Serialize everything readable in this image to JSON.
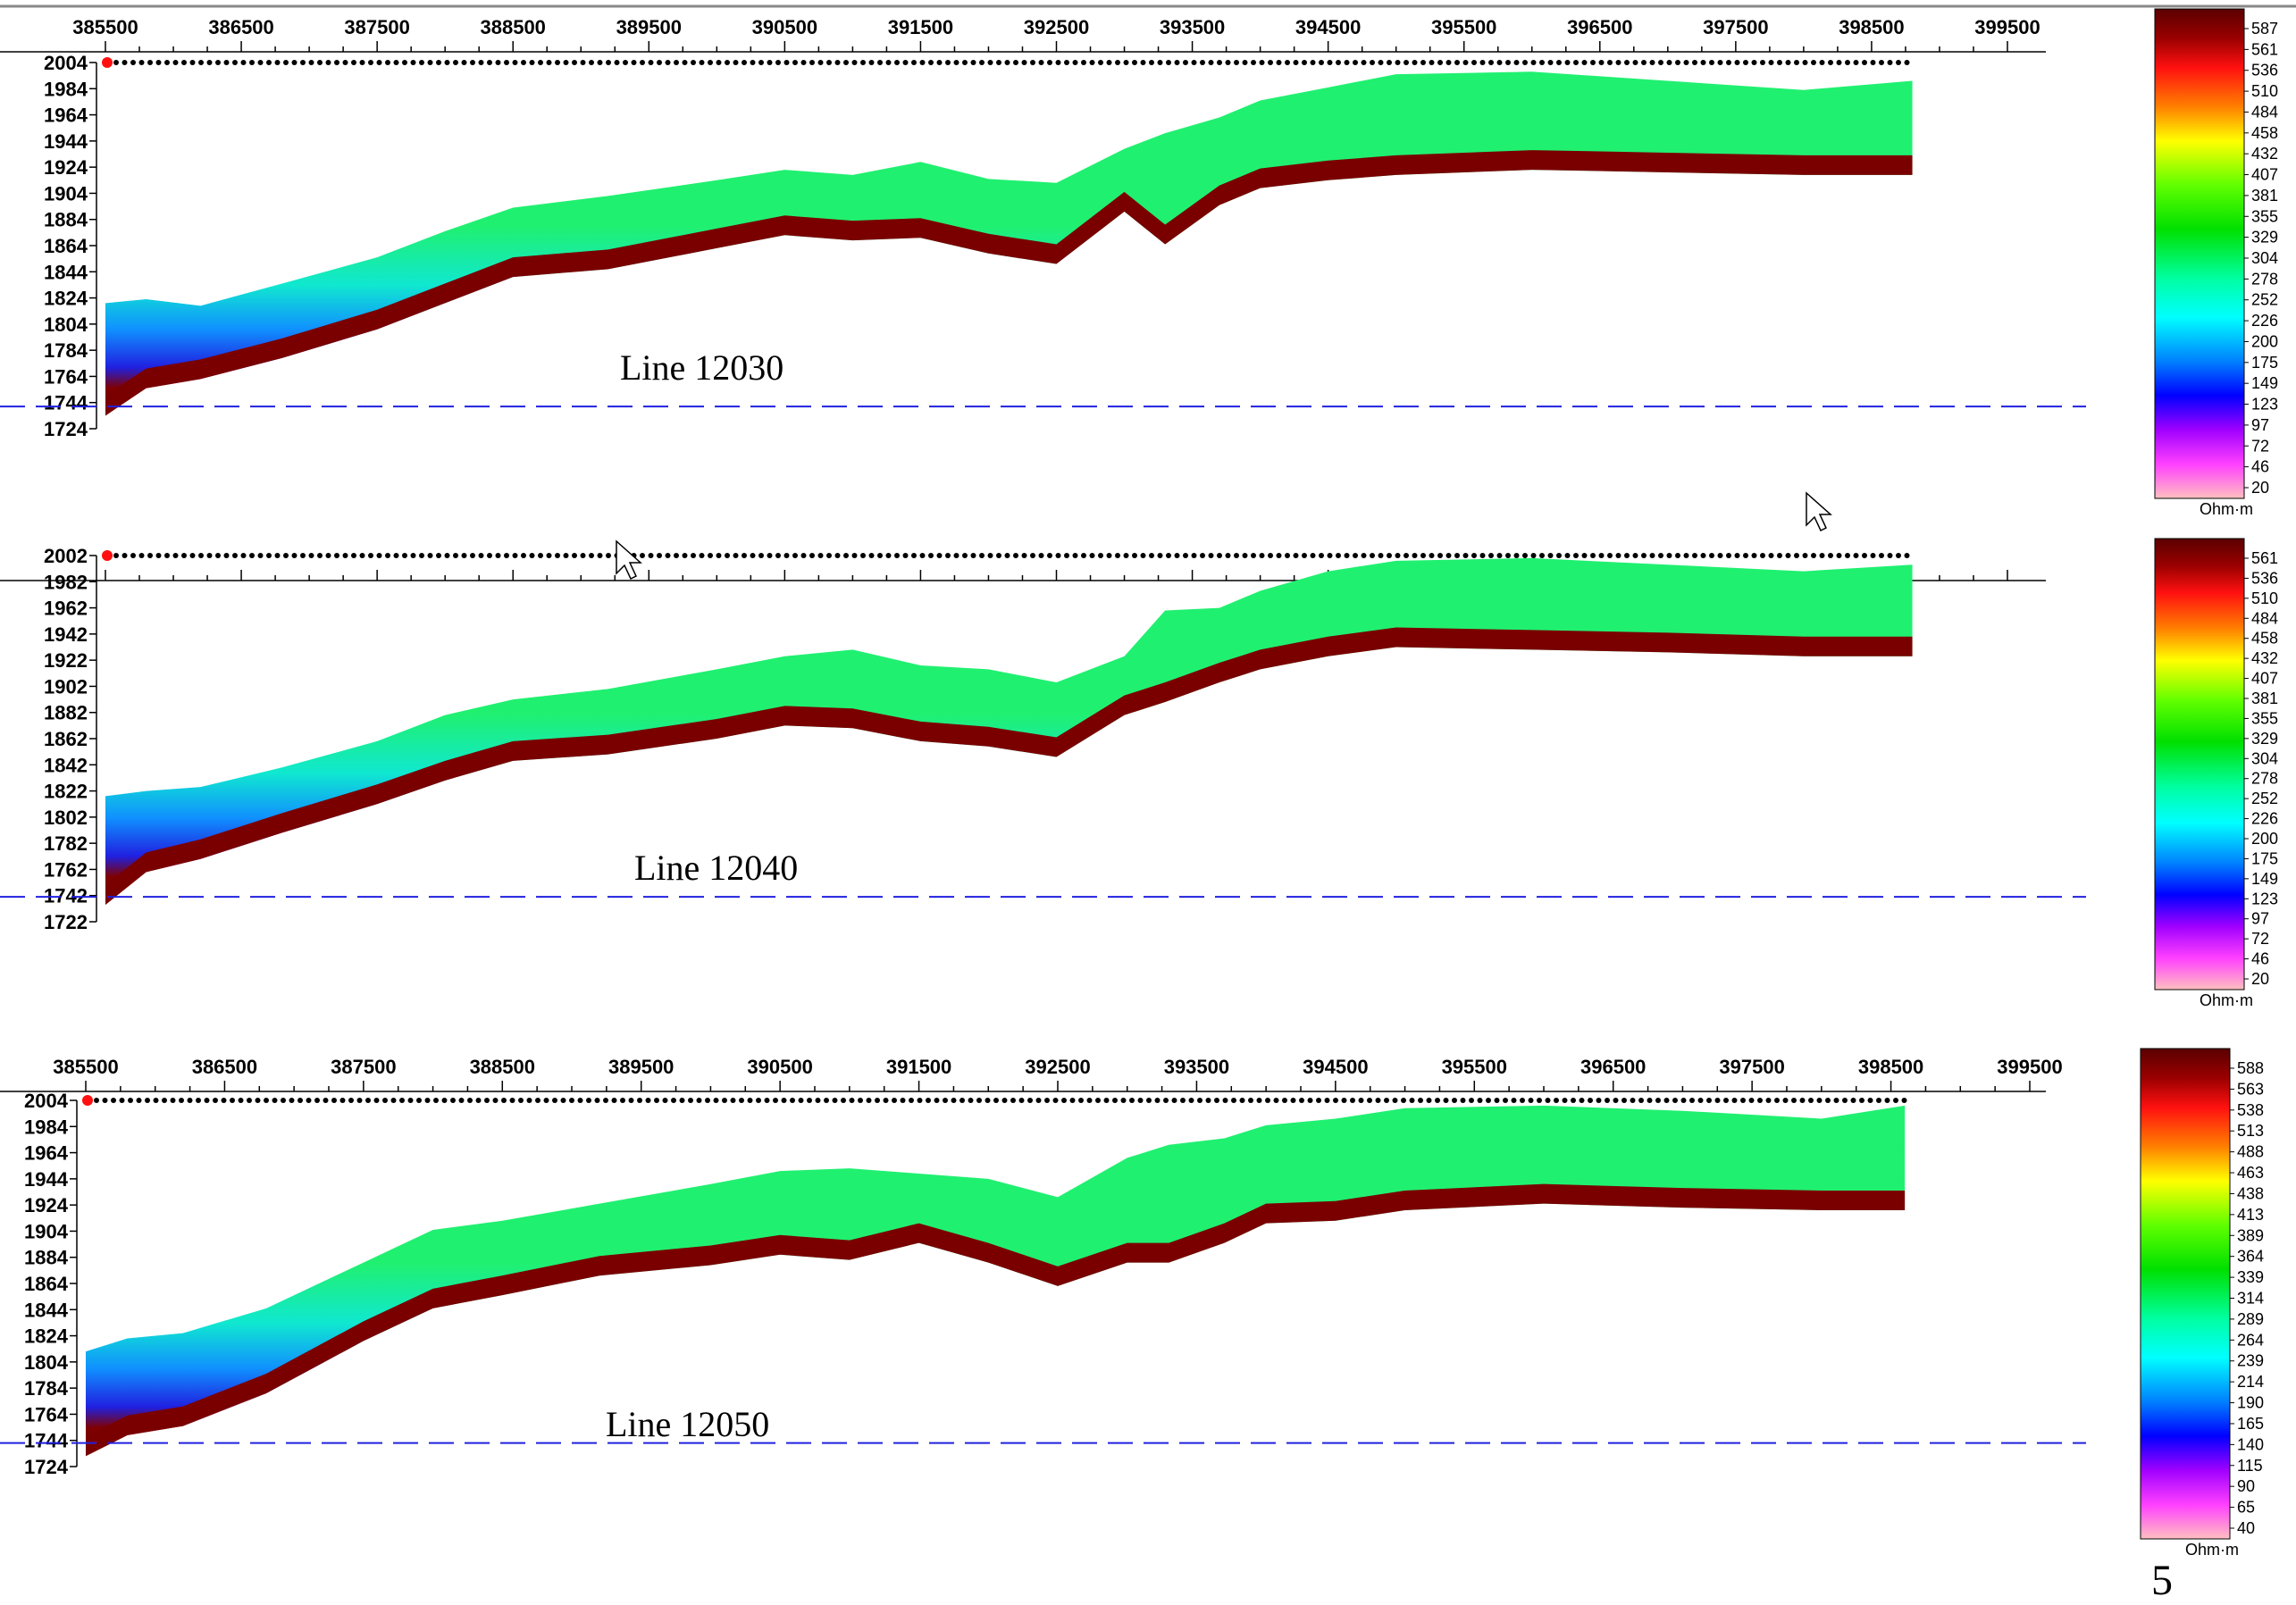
{
  "chart_data": [
    {
      "type": "heatmap",
      "line_label": "Line 12030",
      "x_ticks": [
        "385500",
        "386500",
        "387500",
        "388500",
        "389500",
        "390500",
        "391500",
        "392500",
        "393500",
        "394500",
        "395500",
        "396500",
        "397500",
        "398500",
        "399500"
      ],
      "x_tick_values": [
        385500,
        386500,
        387500,
        388500,
        389500,
        390500,
        391500,
        392500,
        393500,
        394500,
        395500,
        396500,
        397500,
        398500,
        399500
      ],
      "xlim": [
        385500,
        399500
      ],
      "y_ticks": [
        "2004",
        "1984",
        "1964",
        "1944",
        "1924",
        "1904",
        "1884",
        "1864",
        "1844",
        "1824",
        "1804",
        "1784",
        "1764",
        "1744",
        "1724"
      ],
      "y_tick_values": [
        2004,
        1984,
        1964,
        1944,
        1924,
        1904,
        1884,
        1864,
        1844,
        1824,
        1804,
        1784,
        1764,
        1744,
        1724
      ],
      "ylim": [
        1724,
        2004
      ],
      "reference_elevation": 1741,
      "profile_x": [
        385500,
        385800,
        386200,
        386800,
        387500,
        388000,
        388500,
        389200,
        390000,
        390500,
        391000,
        391500,
        392000,
        392500,
        393000,
        393300,
        393700,
        394000,
        394500,
        395000,
        396000,
        397000,
        398000,
        398800
      ],
      "profile_surface": [
        1820,
        1823,
        1818,
        1835,
        1855,
        1875,
        1893,
        1902,
        1914,
        1922,
        1918,
        1928,
        1915,
        1912,
        1938,
        1950,
        1962,
        1975,
        1985,
        1995,
        1997,
        1990,
        1983,
        1990
      ],
      "profile_base": [
        1734,
        1755,
        1762,
        1778,
        1800,
        1820,
        1840,
        1846,
        1862,
        1872,
        1868,
        1870,
        1858,
        1850,
        1890,
        1865,
        1895,
        1908,
        1914,
        1918,
        1922,
        1920,
        1918,
        1918
      ],
      "colorbar": {
        "unit": "Ohm·m",
        "ticks": [
          "587",
          "561",
          "536",
          "510",
          "484",
          "458",
          "432",
          "407",
          "381",
          "355",
          "329",
          "304",
          "278",
          "252",
          "226",
          "200",
          "175",
          "149",
          "123",
          "97",
          "72",
          "46",
          "20"
        ],
        "values": [
          587,
          561,
          536,
          510,
          484,
          458,
          432,
          407,
          381,
          355,
          329,
          304,
          278,
          252,
          226,
          200,
          175,
          149,
          123,
          97,
          72,
          46,
          20
        ]
      }
    },
    {
      "type": "heatmap",
      "line_label": "Line 12040",
      "x_ticks": [],
      "x_tick_values": [],
      "xlim": [
        385500,
        399500
      ],
      "y_ticks": [
        "2002",
        "1982",
        "1962",
        "1942",
        "1922",
        "1902",
        "1882",
        "1862",
        "1842",
        "1822",
        "1802",
        "1782",
        "1762",
        "1742",
        "1722"
      ],
      "y_tick_values": [
        2002,
        1982,
        1962,
        1942,
        1922,
        1902,
        1882,
        1862,
        1842,
        1822,
        1802,
        1782,
        1762,
        1742,
        1722
      ],
      "ylim": [
        1722,
        2002
      ],
      "reference_elevation": 1741,
      "profile_x": [
        385500,
        385800,
        386200,
        386800,
        387500,
        388000,
        388500,
        389200,
        390000,
        390500,
        391000,
        391500,
        392000,
        392500,
        393000,
        393300,
        393700,
        394000,
        394500,
        395000,
        396000,
        397000,
        398000,
        398800
      ],
      "profile_surface": [
        1818,
        1822,
        1825,
        1840,
        1860,
        1880,
        1892,
        1900,
        1915,
        1925,
        1930,
        1918,
        1915,
        1905,
        1925,
        1960,
        1962,
        1975,
        1990,
        1998,
        2000,
        1995,
        1990,
        1995
      ],
      "profile_base": [
        1735,
        1760,
        1770,
        1790,
        1812,
        1830,
        1845,
        1850,
        1862,
        1872,
        1870,
        1860,
        1856,
        1848,
        1880,
        1890,
        1905,
        1915,
        1925,
        1932,
        1930,
        1928,
        1925,
        1925
      ],
      "colorbar": {
        "unit": "Ohm·m",
        "ticks": [
          "561",
          "536",
          "510",
          "484",
          "458",
          "432",
          "407",
          "381",
          "355",
          "329",
          "304",
          "278",
          "252",
          "226",
          "200",
          "175",
          "149",
          "123",
          "97",
          "72",
          "46",
          "20"
        ],
        "values": [
          561,
          536,
          510,
          484,
          458,
          432,
          407,
          381,
          355,
          329,
          304,
          278,
          252,
          226,
          200,
          175,
          149,
          123,
          97,
          72,
          46,
          20
        ]
      }
    },
    {
      "type": "heatmap",
      "line_label": "Line 12050",
      "x_ticks": [
        "385500",
        "386500",
        "387500",
        "388500",
        "389500",
        "390500",
        "391500",
        "392500",
        "393500",
        "394500",
        "395500",
        "396500",
        "397500",
        "398500",
        "399500"
      ],
      "x_tick_values": [
        385500,
        386500,
        387500,
        388500,
        389500,
        390500,
        391500,
        392500,
        393500,
        394500,
        395500,
        396500,
        397500,
        398500,
        399500
      ],
      "xlim": [
        385500,
        399500
      ],
      "y_ticks": [
        "2004",
        "1984",
        "1964",
        "1944",
        "1924",
        "1904",
        "1884",
        "1864",
        "1844",
        "1824",
        "1804",
        "1784",
        "1764",
        "1744",
        "1724"
      ],
      "y_tick_values": [
        2004,
        1984,
        1964,
        1944,
        1924,
        1904,
        1884,
        1864,
        1844,
        1824,
        1804,
        1784,
        1764,
        1744,
        1724
      ],
      "ylim": [
        1724,
        2004
      ],
      "reference_elevation": 1742,
      "profile_x": [
        385500,
        385800,
        386200,
        386800,
        387500,
        388000,
        388500,
        389200,
        390000,
        390500,
        391000,
        391500,
        392000,
        392500,
        393000,
        393300,
        393700,
        394000,
        394500,
        395000,
        396000,
        397000,
        398000,
        398600
      ],
      "profile_surface": [
        1812,
        1822,
        1826,
        1845,
        1880,
        1905,
        1912,
        1925,
        1940,
        1950,
        1952,
        1948,
        1944,
        1930,
        1960,
        1970,
        1975,
        1985,
        1990,
        1998,
        2000,
        1996,
        1990,
        2000
      ],
      "profile_base": [
        1732,
        1748,
        1755,
        1780,
        1820,
        1845,
        1855,
        1870,
        1878,
        1886,
        1882,
        1895,
        1880,
        1862,
        1880,
        1880,
        1895,
        1910,
        1912,
        1920,
        1925,
        1922,
        1920,
        1920
      ],
      "colorbar": {
        "unit": "Ohm·m",
        "ticks": [
          "588",
          "563",
          "538",
          "513",
          "488",
          "463",
          "438",
          "413",
          "389",
          "364",
          "339",
          "314",
          "289",
          "264",
          "239",
          "214",
          "190",
          "165",
          "140",
          "115",
          "90",
          "65",
          "40"
        ],
        "values": [
          588,
          563,
          538,
          513,
          488,
          463,
          438,
          413,
          389,
          364,
          339,
          314,
          289,
          264,
          239,
          214,
          190,
          165,
          140,
          115,
          90,
          65,
          40
        ]
      }
    }
  ],
  "page_number": "5"
}
